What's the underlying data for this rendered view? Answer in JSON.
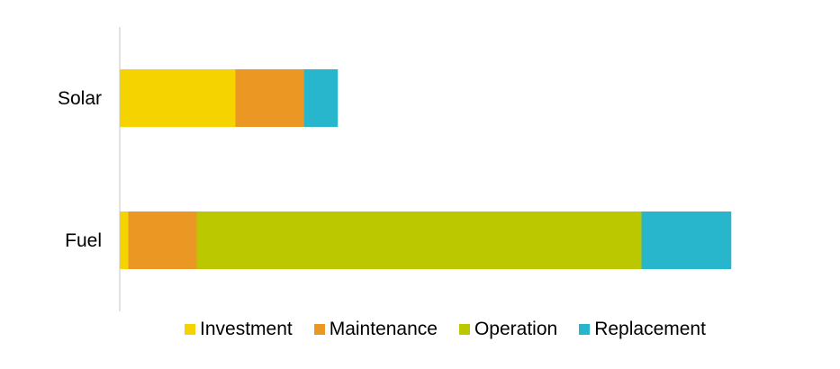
{
  "chart_data": {
    "type": "bar",
    "orientation": "horizontal",
    "stacked": true,
    "categories": [
      "Solar",
      "Fuel"
    ],
    "series": [
      {
        "name": "Investment",
        "color": "#F5D300",
        "values": [
          13.5,
          1.0
        ]
      },
      {
        "name": "Maintenance",
        "color": "#EA9723",
        "values": [
          8.0,
          8.0
        ]
      },
      {
        "name": "Operation",
        "color": "#BBC800",
        "values": [
          0,
          52.0
        ]
      },
      {
        "name": "Replacement",
        "color": "#27B6CB",
        "values": [
          4.0,
          10.5
        ]
      }
    ],
    "xlim": [
      0,
      80
    ],
    "grid": false,
    "legend_position": "bottom",
    "title": "",
    "xlabel": "",
    "ylabel": ""
  }
}
